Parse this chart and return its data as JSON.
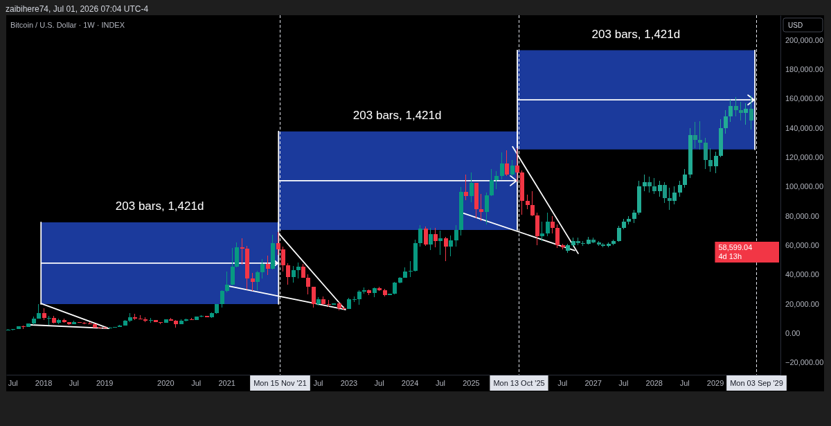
{
  "chart_data": {
    "type": "candlestick",
    "title": "Bitcoin / U.S. Dollar · 1W · INDEX",
    "ylabel": "USD",
    "annotations": [
      "zaibihere74, Jul 01, 2026 07:04 UTC-4",
      {
        "text": "203 bars, 1,421d",
        "x": "2019-11-28",
        "y": 75600
      },
      {
        "text": "203 bars, 1,421d",
        "x": "2023-10-19",
        "y": 137600
      },
      {
        "text": "203 bars, 1,421d",
        "x": "2027-09-16",
        "y": 192900
      },
      "58,599.04\n4d 13h"
    ],
    "xlim": [
      "2017-05-24",
      "2030-01-27"
    ],
    "xticks": [
      {
        "value": "2017-07",
        "label": "Jul"
      },
      {
        "value": "2018",
        "label": "2018"
      },
      {
        "value": "2018-07",
        "label": "Jul"
      },
      {
        "value": "2019",
        "label": "2019"
      },
      {
        "value": "2020",
        "label": "2020"
      },
      {
        "value": "2020-07",
        "label": "Jul"
      },
      {
        "value": "2021",
        "label": "2021"
      },
      {
        "value": "2022-07",
        "label": "Jul"
      },
      {
        "value": "2023",
        "label": "2023"
      },
      {
        "value": "2023-07",
        "label": "Jul"
      },
      {
        "value": "2024",
        "label": "2024"
      },
      {
        "value": "2024-07",
        "label": "Jul"
      },
      {
        "value": "2025",
        "label": "2025"
      },
      {
        "value": "2026-07",
        "label": "Jul"
      },
      {
        "value": "2027",
        "label": "2027"
      },
      {
        "value": "2027-07",
        "label": "Jul"
      },
      {
        "value": "2028",
        "label": "2028"
      },
      {
        "value": "2028-07",
        "label": "Jul"
      },
      {
        "value": "2029",
        "label": "2029"
      }
    ],
    "ylim": [
      -28300,
      216800
    ],
    "yticks": [
      {
        "value": -20000,
        "label": "−20,000.00"
      },
      {
        "value": 0,
        "label": "0.00"
      },
      {
        "value": 20000,
        "label": "20,000.00"
      },
      {
        "value": 40000,
        "label": "40,000.00"
      },
      {
        "value": 60000,
        "label": "60,000.00"
      },
      {
        "value": 80000,
        "label": "80,000.00"
      },
      {
        "value": 100000,
        "label": "100,000.00"
      },
      {
        "value": 120000,
        "label": "120,000.00"
      },
      {
        "value": 140000,
        "label": "140,000.00"
      },
      {
        "value": 160000,
        "label": "160,000.00"
      },
      {
        "value": 180000,
        "label": "180,000.00"
      },
      {
        "value": 200000,
        "label": "200,000.00"
      }
    ],
    "ref_lines": [
      {
        "axis": "x",
        "value": "2021-11-15",
        "label": "Mon 15 Nov '21",
        "color": "#e0e3eb",
        "line_style": "dashed"
      },
      {
        "axis": "x",
        "value": "2025-10-13",
        "label": "Mon 13 Oct '25",
        "color": "#e0e3eb",
        "line_style": "dashed"
      },
      {
        "axis": "x",
        "value": "2029-09-03",
        "label": "Mon 03 Sep '29",
        "color": "#e0e3eb",
        "line_style": "dashed"
      }
    ],
    "series": [
      {
        "x": [
          "2017-06",
          "2017-07",
          "2017-08",
          "2017-09",
          "2017-10",
          "2017-11",
          "2017-12",
          "2018-01",
          "2018-02",
          "2018-03",
          "2018-04",
          "2018-05",
          "2018-06",
          "2018-07",
          "2018-08",
          "2018-09",
          "2018-10",
          "2018-11",
          "2018-12",
          "2019-01",
          "2019-02",
          "2019-03",
          "2019-04",
          "2019-05",
          "2019-06",
          "2019-07",
          "2019-08",
          "2019-09",
          "2019-10",
          "2019-11",
          "2019-12",
          "2020-01",
          "2020-02",
          "2020-03",
          "2020-04",
          "2020-05",
          "2020-06",
          "2020-07",
          "2020-08",
          "2020-09",
          "2020-10",
          "2020-11",
          "2020-12",
          "2021-01",
          "2021-02",
          "2021-03",
          "2021-04",
          "2021-05",
          "2021-06",
          "2021-07",
          "2021-08",
          "2021-09",
          "2021-10",
          "2021-11",
          "2021-12",
          "2022-01",
          "2022-02",
          "2022-03",
          "2022-04",
          "2022-05",
          "2022-06",
          "2022-07",
          "2022-08",
          "2022-09",
          "2022-10",
          "2022-11",
          "2022-12",
          "2023-01",
          "2023-02",
          "2023-03",
          "2023-04",
          "2023-05",
          "2023-06",
          "2023-07",
          "2023-08",
          "2023-09",
          "2023-10",
          "2023-11",
          "2023-12",
          "2024-01",
          "2024-02",
          "2024-03",
          "2024-04",
          "2024-05",
          "2024-06",
          "2024-07",
          "2024-08",
          "2024-09",
          "2024-10",
          "2024-11",
          "2024-12",
          "2025-01",
          "2025-02",
          "2025-03",
          "2025-04",
          "2025-05",
          "2025-06",
          "2025-07",
          "2025-08",
          "2025-09",
          "2025-10",
          "2025-11",
          "2025-12",
          "2026-01",
          "2026-02",
          "2026-03",
          "2026-04",
          "2026-05",
          "2026-06",
          "2026-07"
        ],
        "ohlc": [
          [
            2300,
            3000,
            2100,
            2500
          ],
          [
            2500,
            2900,
            1800,
            2900
          ],
          [
            2900,
            4800,
            2700,
            4700
          ],
          [
            4700,
            5000,
            3000,
            4300
          ],
          [
            4300,
            6500,
            4100,
            6500
          ],
          [
            6500,
            11500,
            5500,
            9900
          ],
          [
            9900,
            19800,
            9900,
            13900
          ],
          [
            13900,
            17200,
            9000,
            10200
          ],
          [
            10200,
            11800,
            5900,
            10300
          ],
          [
            10300,
            11700,
            6600,
            6900
          ],
          [
            6900,
            9800,
            6400,
            9200
          ],
          [
            9200,
            10000,
            7000,
            7500
          ],
          [
            7500,
            7800,
            5800,
            6400
          ],
          [
            6400,
            8500,
            6100,
            7700
          ],
          [
            7700,
            7700,
            7000,
            7000
          ],
          [
            7000,
            7400,
            6100,
            6600
          ],
          [
            6600,
            7600,
            6200,
            6300
          ],
          [
            6300,
            6600,
            3700,
            4000
          ],
          [
            4000,
            4300,
            3200,
            3700
          ],
          [
            3700,
            4100,
            3400,
            3500
          ],
          [
            3500,
            4200,
            3400,
            3900
          ],
          [
            3900,
            4200,
            3700,
            4100
          ],
          [
            4100,
            5600,
            4100,
            5300
          ],
          [
            5300,
            9100,
            5300,
            8600
          ],
          [
            8600,
            13900,
            7500,
            10800
          ],
          [
            10800,
            13200,
            9100,
            10100
          ],
          [
            10100,
            12300,
            9400,
            9600
          ],
          [
            9600,
            10900,
            7700,
            8300
          ],
          [
            8300,
            10400,
            7300,
            9200
          ],
          [
            9200,
            9200,
            7600,
            7600
          ],
          [
            7600,
            7700,
            6400,
            7200
          ],
          [
            7200,
            9600,
            6900,
            9400
          ],
          [
            9400,
            10500,
            8400,
            8600
          ],
          [
            8600,
            9200,
            3900,
            6400
          ],
          [
            6400,
            9500,
            6200,
            8600
          ],
          [
            8600,
            10100,
            8100,
            9500
          ],
          [
            9500,
            10400,
            8900,
            9100
          ],
          [
            9100,
            11400,
            8900,
            11300
          ],
          [
            11300,
            12500,
            10900,
            11700
          ],
          [
            11700,
            11700,
            10800,
            10800
          ],
          [
            10800,
            14100,
            10400,
            13800
          ],
          [
            13800,
            19900,
            13200,
            19700
          ],
          [
            19700,
            29300,
            17600,
            29000
          ],
          [
            29000,
            41900,
            28100,
            33100
          ],
          [
            33100,
            58300,
            32400,
            45200
          ],
          [
            45200,
            61800,
            45000,
            58800
          ],
          [
            58800,
            64900,
            47000,
            57700
          ],
          [
            57700,
            59500,
            30000,
            37300
          ],
          [
            37300,
            41300,
            28800,
            35000
          ],
          [
            35000,
            42400,
            29300,
            41500
          ],
          [
            41500,
            50500,
            37300,
            47100
          ],
          [
            47100,
            52900,
            39600,
            43800
          ],
          [
            43800,
            67000,
            43300,
            61300
          ],
          [
            61300,
            69000,
            53300,
            57000
          ],
          [
            57000,
            59000,
            42000,
            46300
          ],
          [
            46300,
            47900,
            32900,
            38500
          ],
          [
            38500,
            45800,
            34300,
            43200
          ],
          [
            43200,
            48200,
            37200,
            45500
          ],
          [
            45500,
            47400,
            37600,
            37700
          ],
          [
            37700,
            40000,
            26700,
            31800
          ],
          [
            31800,
            31900,
            17600,
            19900
          ],
          [
            19900,
            24700,
            18800,
            23300
          ],
          [
            23300,
            25200,
            19600,
            20000
          ],
          [
            20000,
            22800,
            18200,
            19400
          ],
          [
            19400,
            20500,
            19400,
            20500
          ],
          [
            20500,
            21400,
            15500,
            17200
          ],
          [
            17200,
            18400,
            16300,
            16500
          ],
          [
            16500,
            24000,
            16500,
            23100
          ],
          [
            23100,
            25300,
            21400,
            23100
          ],
          [
            23100,
            29200,
            19600,
            28500
          ],
          [
            28500,
            31000,
            27000,
            29300
          ],
          [
            29300,
            29800,
            25800,
            27200
          ],
          [
            27200,
            31400,
            24800,
            30500
          ],
          [
            30500,
            31800,
            28900,
            29200
          ],
          [
            29200,
            30200,
            25200,
            26000
          ],
          [
            26000,
            27000,
            26000,
            27000
          ],
          [
            27000,
            35200,
            26600,
            34700
          ],
          [
            34700,
            38400,
            34100,
            37700
          ],
          [
            37700,
            44700,
            37600,
            42300
          ],
          [
            42300,
            49000,
            38500,
            42600
          ],
          [
            42600,
            64000,
            41900,
            61200
          ],
          [
            61200,
            73800,
            59000,
            71300
          ],
          [
            71300,
            72800,
            59600,
            60700
          ],
          [
            60700,
            72000,
            56600,
            67500
          ],
          [
            67500,
            72000,
            58400,
            62700
          ],
          [
            62700,
            70000,
            53500,
            64600
          ],
          [
            64600,
            65600,
            49000,
            59000
          ],
          [
            59000,
            66500,
            52600,
            63300
          ],
          [
            63300,
            73600,
            58900,
            70200
          ],
          [
            70200,
            99600,
            66800,
            96400
          ],
          [
            96400,
            108300,
            90500,
            93400
          ],
          [
            93400,
            109400,
            89200,
            102400
          ],
          [
            102400,
            102500,
            78200,
            84400
          ],
          [
            84400,
            95000,
            76600,
            82500
          ],
          [
            82500,
            95800,
            74400,
            94200
          ],
          [
            94200,
            112000,
            93400,
            104600
          ],
          [
            104600,
            110600,
            98200,
            107100
          ],
          [
            107100,
            123200,
            105100,
            115800
          ],
          [
            115800,
            124500,
            107300,
            108300
          ],
          [
            108300,
            117900,
            107300,
            114100
          ],
          [
            114100,
            126200,
            103500,
            109600
          ],
          [
            109600,
            111200,
            80600,
            90400
          ],
          [
            90400,
            94600,
            84400,
            87500
          ],
          [
            87500,
            97000,
            80000,
            80500
          ],
          [
            80500,
            82000,
            60000,
            66000
          ],
          [
            66000,
            76000,
            63000,
            68000
          ],
          [
            68000,
            82000,
            66000,
            76000
          ],
          [
            76000,
            80000,
            68000,
            72000
          ],
          [
            72000,
            74000,
            58000,
            60000
          ],
          [
            60000,
            61000,
            57000,
            58599.04
          ]
        ],
        "colors": [
          "#089981",
          "#089981",
          "#089981",
          "#f23645",
          "#089981",
          "#089981",
          "#089981",
          "#f23645",
          "#089981",
          "#f23645",
          "#089981",
          "#f23645",
          "#f23645",
          "#089981",
          "#f23645",
          "#f23645",
          "#f23645",
          "#f23645",
          "#f23645",
          "#f23645",
          "#089981",
          "#089981",
          "#089981",
          "#089981",
          "#089981",
          "#f23645",
          "#f23645",
          "#f23645",
          "#089981",
          "#f23645",
          "#f23645",
          "#089981",
          "#f23645",
          "#f23645",
          "#089981",
          "#089981",
          "#f23645",
          "#089981",
          "#089981",
          "#f23645",
          "#089981",
          "#089981",
          "#089981",
          "#089981",
          "#089981",
          "#089981",
          "#f23645",
          "#f23645",
          "#f23645",
          "#089981",
          "#089981",
          "#f23645",
          "#089981",
          "#f23645",
          "#f23645",
          "#f23645",
          "#089981",
          "#089981",
          "#f23645",
          "#f23645",
          "#f23645",
          "#089981",
          "#f23645",
          "#f23645",
          "#089981",
          "#f23645",
          "#f23645",
          "#089981",
          "#089981",
          "#089981",
          "#089981",
          "#f23645",
          "#089981",
          "#f23645",
          "#f23645",
          "#089981",
          "#089981",
          "#089981",
          "#089981",
          "#089981",
          "#089981",
          "#089981",
          "#f23645",
          "#089981",
          "#f23645",
          "#089981",
          "#f23645",
          "#089981",
          "#089981",
          "#089981",
          "#f23645",
          "#089981",
          "#f23645",
          "#f23645",
          "#089981",
          "#089981",
          "#089981",
          "#089981",
          "#f23645",
          "#089981",
          "#f23645",
          "#f23645",
          "#f23645",
          "#f23645",
          "#f23645",
          "#089981",
          "#089981",
          "#f23645",
          "#f23645",
          "#f23645"
        ]
      },
      {
        "x": [
          "2026-08",
          "2026-09",
          "2026-10",
          "2026-11",
          "2026-12",
          "2027-01",
          "2027-02",
          "2027-03",
          "2027-04",
          "2027-05",
          "2027-06",
          "2027-07",
          "2027-08",
          "2027-09",
          "2027-10",
          "2027-11",
          "2027-12",
          "2028-01",
          "2028-02",
          "2028-03",
          "2028-04",
          "2028-05",
          "2028-06",
          "2028-07",
          "2028-08",
          "2028-09",
          "2028-10",
          "2028-11",
          "2028-12",
          "2029-01",
          "2029-02",
          "2029-03",
          "2029-04",
          "2029-05",
          "2029-06",
          "2029-07",
          "2029-08"
        ],
        "ohlc": [
          [
            56000,
            61000,
            54800,
            60000
          ],
          [
            60000,
            65000,
            59000,
            63000
          ],
          [
            63000,
            65000,
            60000,
            61500
          ],
          [
            61500,
            63000,
            59500,
            61000
          ],
          [
            61000,
            65500,
            60500,
            64000
          ],
          [
            64000,
            65000,
            61500,
            62000
          ],
          [
            62000,
            63000,
            59500,
            60500
          ],
          [
            60500,
            61500,
            58500,
            59500
          ],
          [
            59500,
            62000,
            58500,
            61000
          ],
          [
            61000,
            64000,
            60000,
            63000
          ],
          [
            63000,
            73000,
            62500,
            72000
          ],
          [
            72000,
            78000,
            71000,
            76000
          ],
          [
            76000,
            80000,
            74000,
            78000
          ],
          [
            78000,
            84000,
            75000,
            82000
          ],
          [
            82000,
            104000,
            81000,
            100000
          ],
          [
            100000,
            108000,
            97000,
            103000
          ],
          [
            103000,
            107000,
            96000,
            100000
          ],
          [
            100000,
            106000,
            95000,
            97000
          ],
          [
            97000,
            104000,
            93000,
            101000
          ],
          [
            101000,
            103000,
            89000,
            92000
          ],
          [
            92000,
            99000,
            84000,
            90000
          ],
          [
            90000,
            100000,
            88000,
            96000
          ],
          [
            96000,
            104000,
            93000,
            101000
          ],
          [
            101000,
            112000,
            99000,
            108000
          ],
          [
            108000,
            140000,
            106000,
            135000
          ],
          [
            135000,
            144000,
            126000,
            132000
          ],
          [
            132000,
            144500,
            125000,
            130000
          ],
          [
            130000,
            133000,
            112000,
            118000
          ],
          [
            118000,
            126000,
            110000,
            114000
          ],
          [
            114000,
            124000,
            109000,
            121000
          ],
          [
            121000,
            146000,
            120000,
            140000
          ],
          [
            140000,
            152000,
            136000,
            148000
          ],
          [
            148000,
            159000,
            144000,
            155000
          ],
          [
            155000,
            161000,
            148000,
            152000
          ],
          [
            152000,
            158000,
            145000,
            150000
          ],
          [
            150000,
            157000,
            142000,
            153000
          ],
          [
            153000,
            162000,
            139000,
            145000
          ]
        ],
        "colors": [
          "#22ab94",
          "#22ab94",
          "#1c9985",
          "#1c9985",
          "#22ab94",
          "#1c9985",
          "#1c9985",
          "#1c9985",
          "#22ab94",
          "#22ab94",
          "#22ab94",
          "#22ab94",
          "#22ab94",
          "#22ab94",
          "#22ab94",
          "#22ab94",
          "#1c9985",
          "#1c9985",
          "#22ab94",
          "#1c9985",
          "#1c9985",
          "#22ab94",
          "#22ab94",
          "#22ab94",
          "#22ab94",
          "#1c9985",
          "#1c9985",
          "#1c9985",
          "#1c9985",
          "#22ab94",
          "#22ab94",
          "#22ab94",
          "#22ab94",
          "#1c9985",
          "#1c9985",
          "#22ab94",
          "#1c9985"
        ]
      },
      {
        "type": "line",
        "color": "#ffffff",
        "x": [
          "2017-12-18",
          "2019-01-28"
        ],
        "values": [
          20300,
          3300
        ]
      },
      {
        "type": "line",
        "color": "#ffffff",
        "x": [
          "2017-10-16",
          "2019-01-28"
        ],
        "values": [
          5700,
          3300
        ]
      },
      {
        "type": "line",
        "color": "#ffffff",
        "x": [
          "2021-11-08",
          "2022-12-12"
        ],
        "values": [
          68100,
          16100
        ]
      },
      {
        "type": "line",
        "color": "#ffffff",
        "x": [
          "2021-01-11",
          "2022-12-12"
        ],
        "values": [
          32200,
          16100
        ]
      },
      {
        "type": "line",
        "color": "#ffffff",
        "x": [
          "2025-09-08",
          "2026-10-05"
        ],
        "values": [
          127200,
          54400
        ]
      },
      {
        "type": "line",
        "color": "#ffffff",
        "x": [
          "2024-11-18",
          "2026-09-14"
        ],
        "values": [
          81800,
          56400
        ]
      },
      {
        "type": "line",
        "color": "#1b3a9c",
        "x": [
          "2017-12-18",
          "2021-11-08"
        ],
        "values": [
          null,
          null
        ],
        "lower": [
          19900,
          19900
        ],
        "upper": [
          75600,
          75600
        ]
      },
      {
        "type": "line",
        "color": "#1b3a9c",
        "x": [
          "2021-11-08",
          "2025-10-06"
        ],
        "values": [
          null,
          null
        ],
        "lower": [
          70400,
          70400
        ],
        "upper": [
          137600,
          137600
        ]
      },
      {
        "type": "line",
        "color": "#1b3a9c",
        "x": [
          "2025-10-06",
          "2029-08-27"
        ],
        "values": [
          null,
          null
        ],
        "lower": [
          125300,
          125300
        ],
        "upper": [
          192900,
          192900
        ]
      }
    ]
  }
}
